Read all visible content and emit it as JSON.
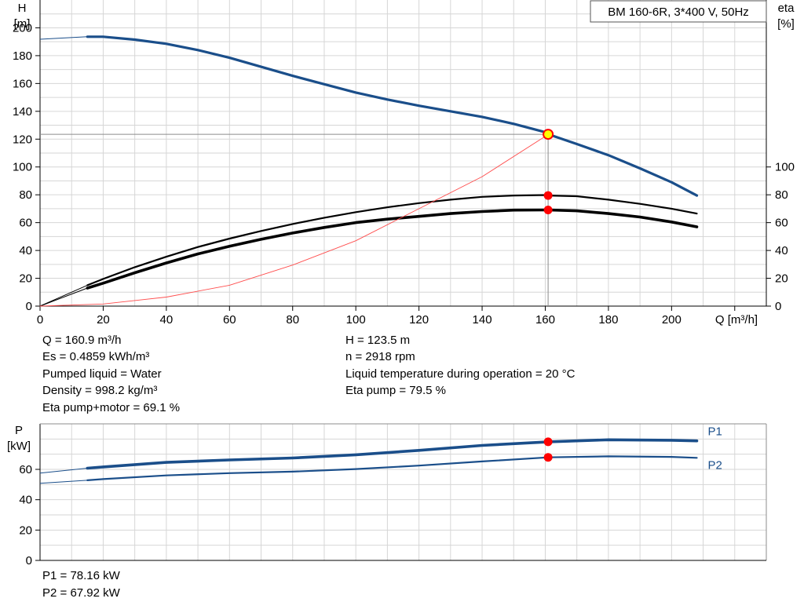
{
  "chart_data": [
    {
      "type": "line",
      "title": "BM 160-6R, 3*400 V, 50Hz",
      "xlabel": "Q [m³/h]",
      "ylabel_left": "H",
      "ylabel_left_unit": "[m]",
      "ylabel_right": "eta",
      "ylabel_right_unit": "[%]",
      "xlim": [
        0,
        230
      ],
      "ylim_left": [
        0,
        220
      ],
      "ylim_right": [
        0,
        220
      ],
      "x_ticks": [
        0,
        20,
        40,
        60,
        80,
        100,
        120,
        140,
        160,
        180,
        200
      ],
      "y_left_ticks": [
        0,
        20,
        40,
        60,
        80,
        100,
        120,
        140,
        160,
        180,
        200
      ],
      "y_right_ticks": [
        0,
        20,
        40,
        60,
        80,
        100
      ],
      "grid": true,
      "colors": {
        "head": "#1a4e8a",
        "eta": "#000000",
        "system": "#ff4d4d",
        "duty_marker": "#ff0000",
        "duty_head_fill": "#ffff00"
      },
      "series": [
        {
          "role": "head",
          "extrapolated": {
            "x": [
              0,
              15
            ],
            "y": [
              191.8,
              193.6
            ]
          },
          "x": [
            15,
            20,
            30,
            40,
            50,
            60,
            70,
            80,
            90,
            100,
            110,
            120,
            130,
            140,
            150,
            160,
            161,
            170,
            180,
            190,
            200,
            208
          ],
          "y": [
            193.6,
            193.6,
            191.5,
            188.5,
            184,
            178.5,
            172,
            165.5,
            159.5,
            153.5,
            148.5,
            144,
            140,
            136,
            131,
            125,
            123.5,
            116.5,
            108.5,
            99,
            89,
            79.5
          ]
        },
        {
          "role": "eta_pump",
          "extrapolated": {
            "x": [
              0,
              15
            ],
            "y": [
              0,
              15
            ]
          },
          "x": [
            15,
            20,
            30,
            40,
            50,
            60,
            70,
            80,
            90,
            100,
            110,
            120,
            130,
            140,
            150,
            160,
            161,
            170,
            180,
            190,
            200,
            208
          ],
          "y": [
            15,
            19.5,
            28,
            35.5,
            42.5,
            48.5,
            54,
            59,
            63.5,
            67.5,
            71,
            74,
            76.5,
            78.5,
            79.5,
            79.8,
            79.5,
            79,
            76.5,
            73.5,
            70,
            66.5
          ]
        },
        {
          "role": "eta_pump_motor",
          "extrapolated": {
            "x": [
              0,
              15
            ],
            "y": [
              0,
              13
            ]
          },
          "x": [
            15,
            20,
            30,
            40,
            50,
            60,
            70,
            80,
            90,
            100,
            110,
            120,
            130,
            140,
            150,
            160,
            161,
            170,
            180,
            190,
            200,
            208
          ],
          "y": [
            13,
            16.5,
            24,
            31,
            37.5,
            43,
            48,
            52.5,
            56.5,
            60,
            62.5,
            64.5,
            66.5,
            68,
            69,
            69.1,
            69.1,
            68.5,
            66.5,
            64,
            60.5,
            57
          ]
        },
        {
          "role": "system",
          "x": [
            0,
            20,
            40,
            60,
            80,
            100,
            120,
            140,
            161
          ],
          "y": [
            0,
            1.5,
            6.5,
            15,
            29.5,
            47,
            70,
            93,
            123.5
          ]
        }
      ],
      "duty_point": {
        "x": 160.9,
        "head": 123.5,
        "eta_pump": 79.5,
        "eta_pump_motor": 69.1
      }
    },
    {
      "type": "line",
      "ylabel": "P",
      "ylabel_unit": "[kW]",
      "xlim": [
        0,
        230
      ],
      "ylim": [
        0,
        90
      ],
      "y_ticks": [
        0,
        20,
        40,
        60
      ],
      "grid": true,
      "colors": {
        "power": "#1a4e8a",
        "duty_marker": "#ff0000"
      },
      "series": [
        {
          "name": "P1",
          "extrapolated": {
            "x": [
              0,
              15
            ],
            "y": [
              57.5,
              60.8
            ]
          },
          "x": [
            15,
            20,
            40,
            60,
            80,
            100,
            120,
            140,
            161,
            180,
            200,
            208
          ],
          "y": [
            60.8,
            61.6,
            64.6,
            66.2,
            67.5,
            69.6,
            72.5,
            75.8,
            78.16,
            79.5,
            79.2,
            78.8
          ]
        },
        {
          "name": "P2",
          "extrapolated": {
            "x": [
              0,
              15
            ],
            "y": [
              50.8,
              52.8
            ]
          },
          "x": [
            15,
            20,
            40,
            60,
            80,
            100,
            120,
            140,
            161,
            180,
            200,
            208
          ],
          "y": [
            52.8,
            53.6,
            56,
            57.5,
            58.5,
            60.2,
            62.5,
            65.2,
            67.92,
            68.6,
            68.2,
            67.6
          ]
        }
      ],
      "duty_point": {
        "x": 160.9,
        "P1": 78.16,
        "P2": 67.92
      }
    }
  ],
  "info": {
    "left": [
      "Q = 160.9 m³/h",
      "Es = 0.4859 kWh/m³",
      "Pumped liquid = Water",
      "Density = 998.2 kg/m³",
      "Eta pump+motor = 69.1 %"
    ],
    "right": [
      "H = 123.5 m",
      "n = 2918 rpm",
      "Liquid temperature during operation = 20 °C",
      "Eta pump = 79.5 %"
    ]
  },
  "power_info": [
    "P1 = 78.16 kW",
    "P2 = 67.92 kW"
  ]
}
